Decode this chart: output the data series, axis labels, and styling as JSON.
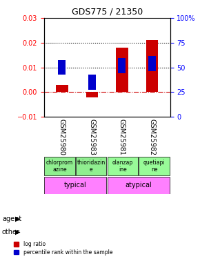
{
  "title": "GDS775 / 21350",
  "samples": [
    "GSM25980",
    "GSM25983",
    "GSM25981",
    "GSM25982"
  ],
  "log_ratio": [
    0.003,
    -0.002,
    0.018,
    0.021
  ],
  "percentile_rank": [
    0.5,
    0.35,
    0.52,
    0.54
  ],
  "log_ratio_color": "#cc0000",
  "percentile_color": "#0000cc",
  "ylim_left": [
    -0.01,
    0.03
  ],
  "ylim_right": [
    0,
    100
  ],
  "yticks_left": [
    -0.01,
    0,
    0.01,
    0.02,
    0.03
  ],
  "yticks_right": [
    0,
    25,
    50,
    75,
    100
  ],
  "agent_labels": [
    "chlorprom\nazine",
    "thioridazin\ne",
    "olanzap\nine",
    "quetiapi\nne"
  ],
  "agent_colors": [
    "#90ee90",
    "#90ee90",
    "#90ee90",
    "#90ee90"
  ],
  "other_labels": [
    "typical",
    "typical",
    "atypical",
    "atypical"
  ],
  "other_colors_typical": "#ff80ff",
  "other_colors_atypical": "#ff40ff",
  "bar_width": 0.4,
  "dotted_lines": [
    0.01,
    0.02
  ],
  "background_color": "#ffffff"
}
